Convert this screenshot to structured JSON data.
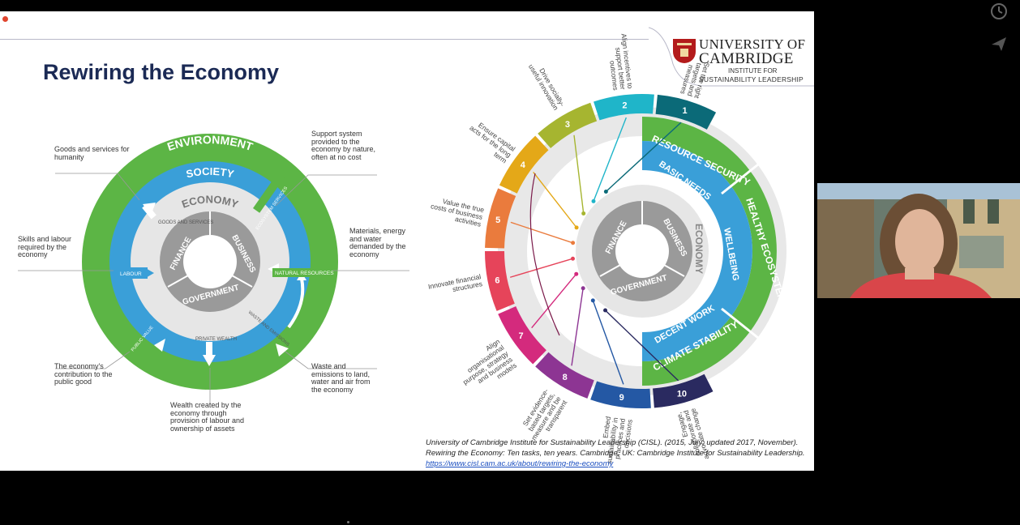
{
  "slide": {
    "title": "Rewiring the Economy",
    "logo": {
      "line1": "UNIVERSITY OF",
      "line2": "CAMBRIDGE",
      "line3": "INSTITUTE FOR",
      "line4": "SUSTAINABILITY LEADERSHIP"
    },
    "left_diagram": {
      "rings": {
        "environment": "ENVIRONMENT",
        "society": "SOCIETY",
        "economy": "ECONOMY"
      },
      "core": {
        "finance": "FINANCE",
        "business": "BUSINESS",
        "government": "GOVERNMENT"
      },
      "flows": {
        "goods": "GOODS AND SERVICES",
        "labour": "LABOUR",
        "natural_resources": "NATURAL RESOURCES",
        "ecosystem_services": "ECOSYSTEM SERVICES",
        "waste": "WASTE AND EMISSIONS",
        "private_wealth": "PRIVATE WEALTH",
        "public_value": "PUBLIC VALUE"
      },
      "callouts": {
        "goods_services": "Goods and services for humanity",
        "support_system": "Support system provided to the economy by nature, often at no cost",
        "skills": "Skills and labour required by the economy",
        "materials": "Materials, energy and water demanded by the economy",
        "contribution": "The economy's contribution to the public good",
        "waste": "Waste and emissions to land, water and air from the economy",
        "wealth": "Wealth created by the economy through provision of labour and ownership of assets"
      }
    },
    "right_diagram": {
      "outer": {
        "resource_security": "RESOURCE SECURITY",
        "healthy_ecosystems": "HEALTHY ECOSYSTEMS",
        "climate_stability": "CLIMATE STABILITY"
      },
      "inner": {
        "basic_needs": "BASIC NEEDS",
        "wellbeing": "WELLBEING",
        "decent_work": "DECENT WORK"
      },
      "economy": "ECONOMY",
      "core": {
        "finance": "FINANCE",
        "business": "BUSINESS",
        "government": "GOVERNMENT"
      },
      "tasks": [
        {
          "num": "1",
          "label": "Set the right targets and measures",
          "color": "#0b6a78"
        },
        {
          "num": "2",
          "label": "Align incentives to support better outcomes",
          "color": "#1fb5c9"
        },
        {
          "num": "3",
          "label": "Drive socially-useful innovation",
          "color": "#a6b530"
        },
        {
          "num": "4",
          "label": "Ensure capital acts for the long term",
          "color": "#e4a818"
        },
        {
          "num": "5",
          "label": "Value the true costs of business activities",
          "color": "#ea7b3d"
        },
        {
          "num": "6",
          "label": "Innovate financial structures",
          "color": "#e6445a"
        },
        {
          "num": "7",
          "label": "Align organisational purpose, strategy and business models",
          "color": "#d42a7d"
        },
        {
          "num": "8",
          "label": "Set evidence-based targets, measure and be transparent",
          "color": "#8d3593"
        },
        {
          "num": "9",
          "label": "Embed sustainability in practices and decisions",
          "color": "#2458a4"
        },
        {
          "num": "10",
          "label": "Engage, collaborate and advocate change",
          "color": "#2a2a60"
        }
      ]
    },
    "citation": {
      "line1": "University of Cambridge Institute for Sustainability Leadership (CISL). (2015, July; updated 2017, November).",
      "line2": "Rewiring the Economy: Ten tasks, ten years. Cambridge, UK: Cambridge Institute for Sustainability Leadership.",
      "link": "https://www.cisl.cam.ac.uk/about/rewiring-the-economy"
    }
  },
  "colors": {
    "green": "#5cb545",
    "blue": "#3a9fd8",
    "grey": "#9a9a9a",
    "light_grey": "#e6e6e6",
    "navy": "#1b2a55"
  },
  "sidebar_icons": [
    "clock-icon",
    "send-icon"
  ]
}
